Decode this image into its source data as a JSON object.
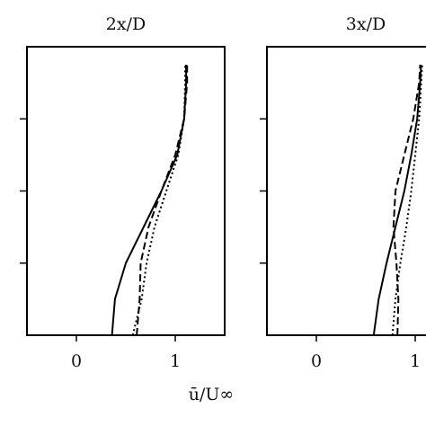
{
  "chart_data": [
    {
      "type": "line",
      "title": "2x/D",
      "x_label": "ū/U∞",
      "y": [
        0,
        0.5,
        1,
        1.5,
        2,
        2.5,
        3,
        3.5,
        3.75
      ],
      "xlim": [
        -0.5,
        1.5
      ],
      "xticks": [
        0,
        1
      ],
      "ylim": [
        0,
        4
      ],
      "yticks": [
        {
          "value": 1,
          "label": null
        },
        {
          "value": 2,
          "label": null
        },
        {
          "value": 3,
          "label": null
        }
      ],
      "series": [
        {
          "style": "solid",
          "color": "#000000",
          "values": [
            0.36,
            0.39,
            0.5,
            0.68,
            0.86,
            1.02,
            1.09,
            1.11,
            1.11
          ]
        },
        {
          "style": "dashed",
          "color": "#000000",
          "values": [
            0.61,
            0.64,
            0.65,
            0.73,
            0.86,
            1.0,
            1.09,
            1.12,
            1.12
          ]
        },
        {
          "style": "dotted",
          "color": "#000000",
          "values": [
            0.57,
            0.66,
            0.71,
            0.79,
            0.91,
            1.03,
            1.09,
            1.1,
            1.1
          ]
        }
      ]
    },
    {
      "type": "line",
      "title": "3x/D",
      "y": [
        0,
        0.5,
        1,
        1.5,
        2,
        2.5,
        3,
        3.5,
        3.75
      ],
      "xlim": [
        -0.5,
        1.5
      ],
      "xticks": [
        0,
        1
      ],
      "ylim": [
        0,
        4
      ],
      "yticks": [
        {
          "value": 1,
          "label": null
        },
        {
          "value": 2,
          "label": null
        },
        {
          "value": 3,
          "label": null
        }
      ],
      "series": [
        {
          "style": "solid",
          "color": "#000000",
          "values": [
            0.58,
            0.63,
            0.71,
            0.8,
            0.89,
            0.96,
            1.02,
            1.05,
            1.06
          ]
        },
        {
          "style": "dashed",
          "color": "#000000",
          "values": [
            0.82,
            0.83,
            0.81,
            0.78,
            0.8,
            0.89,
            0.98,
            1.04,
            1.05
          ]
        },
        {
          "style": "dotted",
          "color": "#000000",
          "values": [
            0.77,
            0.8,
            0.85,
            0.91,
            0.96,
            1.0,
            1.04,
            1.06,
            1.07
          ]
        }
      ]
    }
  ]
}
